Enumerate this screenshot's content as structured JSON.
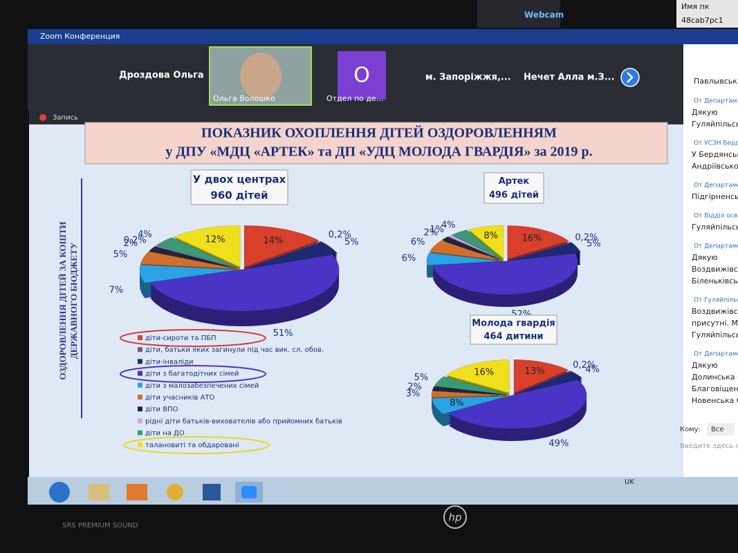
{
  "top_bar": {
    "webcam": "Webcam",
    "pc_name_label": "Имя пк",
    "pc_name": "48cab7pc1"
  },
  "window": {
    "title": "Zoom Конференция",
    "recording": "Запись"
  },
  "participants": [
    {
      "name": "Дроздова Ольга"
    },
    {
      "name": "Ольга Волошко"
    },
    {
      "avatar": "O",
      "name": "Отдел по де..."
    },
    {
      "name": "м. Запоріжжя,..."
    },
    {
      "name": "Нечет Алла м.З..."
    }
  ],
  "chat": {
    "header": "Павлывськ...",
    "messages": [
      {
        "from": "От Департам...",
        "lines": [
          "Дякую",
          "Гуляйпільськ..."
        ]
      },
      {
        "from": "От УСЗН Берд...",
        "lines": [
          "У Бердянськ...",
          "Андріївської..."
        ]
      },
      {
        "from": "От Департаме...",
        "lines": [
          "Підгірненськ..."
        ]
      },
      {
        "from": "От Відділ освіт...",
        "lines": [
          "Гуляйпільськ..."
        ]
      },
      {
        "from": "От Департаме...",
        "lines": [
          "Дякую",
          "Воздвижівськ...",
          "Біленьківськ..."
        ]
      },
      {
        "from": "От Гуляйпільськ...",
        "lines": [
          "Воздвижівськ...",
          "присутні. Ми з...",
          "Гуляйпільськ..."
        ]
      },
      {
        "from": "От Департамент...",
        "lines": [
          "Дякую",
          "Долинська ОТГ...",
          "Благовіщенськ...",
          "Новенська ОТГ..."
        ]
      }
    ],
    "to_label": "Кому:",
    "to_value": "Все",
    "input_placeholder": "Введите здесь со..."
  },
  "taskbar": {
    "language": "UK"
  },
  "bezel": {
    "sound": "SRS PREMIUM SOUND",
    "brand": "hp"
  },
  "slide": {
    "title_line1": "ПОКАЗНИК ОХОПЛЕННЯ ДІТЕЙ ОЗДОРОВЛЕННЯМ",
    "title_line2": "у ДПУ «МДЦ «АРТЕК» та  ДП «УДЦ МОЛОДА ГВАРДІЯ» за 2019 р.",
    "side_line1": "ОЗДОРОВЛЕННЯ ДІТЕЙ ЗА КОШТИ",
    "side_line2": "ДЕРЖАВНОГО БЮДЖЕТУ"
  },
  "chart_data": [
    {
      "type": "pie",
      "title": "У двох центрах",
      "subtitle": "960 дітей",
      "categories": [
        "діти-сироти та ПБП",
        "діти, батьки яких загинули під час вик. сл. обов.",
        "діти-інваліди",
        "діти з багатодітних сімей",
        "діти з малозабезпечених сімей",
        "діти учасників АТО",
        "діти ВПО",
        "рідні діти батьків-вихователів або прийомних батьків",
        "діти на ДО",
        "талановиті та обдаровані"
      ],
      "colors": [
        "#d8402c",
        "#8a4f86",
        "#1d2a72",
        "#4a34c6",
        "#2aa3e6",
        "#d0702c",
        "#24243f",
        "#c7a6e2",
        "#3a9a78",
        "#f0e01c"
      ],
      "values": [
        14,
        0.2,
        5,
        51,
        7,
        5,
        2,
        0.2,
        4,
        12
      ],
      "value_labels": [
        "14%",
        "0,2%",
        "5%",
        "51%",
        "7%",
        "5%",
        "2%",
        "0,2%",
        "4%",
        "12%"
      ]
    },
    {
      "type": "pie",
      "title": "Артек",
      "subtitle": "496 дітей",
      "values": [
        16,
        0.2,
        5,
        52,
        6,
        6,
        2,
        1,
        4,
        8
      ],
      "value_labels": [
        "16%",
        "0,2%",
        "5%",
        "52%",
        "6%",
        "6%",
        "2%",
        "1%",
        "4%",
        "8%"
      ]
    },
    {
      "type": "pie",
      "title": "Молода гвардія",
      "subtitle": "464 дитини",
      "values": [
        13,
        0.2,
        4,
        49,
        8,
        3,
        2,
        null,
        5,
        16
      ],
      "value_labels": [
        "13%",
        "0,2%",
        "4%",
        "49%",
        "8%",
        "3%",
        "2%",
        null,
        "5%",
        "16%"
      ]
    }
  ]
}
